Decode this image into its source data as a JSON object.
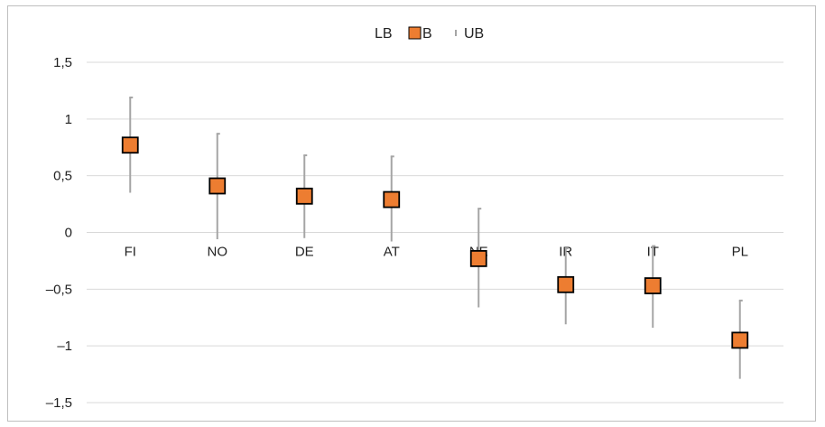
{
  "chart_data": {
    "type": "scatter",
    "categories": [
      "FI",
      "NO",
      "DE",
      "AT",
      "NE",
      "IR",
      "IT",
      "PL"
    ],
    "series": [
      {
        "name": "LB",
        "values": [
          0.35,
          -0.06,
          -0.05,
          -0.08,
          -0.66,
          -0.81,
          -0.84,
          -1.29
        ]
      },
      {
        "name": "B",
        "values": [
          0.77,
          0.41,
          0.32,
          0.29,
          -0.23,
          -0.46,
          -0.47,
          -0.95
        ]
      },
      {
        "name": "UB",
        "values": [
          1.19,
          0.87,
          0.68,
          0.67,
          0.21,
          -0.14,
          -0.12,
          -0.6
        ]
      }
    ],
    "y_ticks": [
      "1,5",
      "1",
      "0,5",
      "0",
      "–0,5",
      "–1",
      "–1,5"
    ],
    "y_tick_values": [
      1.5,
      1,
      0.5,
      0,
      -0.5,
      -1,
      -1.5
    ],
    "ylim": [
      -1.5,
      1.5
    ],
    "grid": true,
    "legend": {
      "position": "top-center",
      "entries": [
        "LB",
        "B",
        "UB"
      ]
    },
    "colors": {
      "marker_fill": "#ed7d31",
      "marker_stroke": "#000000",
      "whisker": "#a5a5a5",
      "grid": "#d9d9d9"
    }
  }
}
